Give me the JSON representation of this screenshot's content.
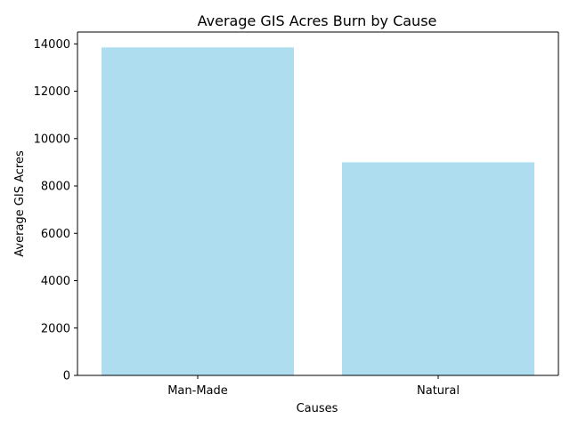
{
  "chart_data": {
    "type": "bar",
    "title": "Average GIS Acres Burn by Cause",
    "xlabel": "Causes",
    "ylabel": "Average GIS Acres",
    "categories": [
      "Man-Made",
      "Natural"
    ],
    "values": [
      13850,
      9000
    ],
    "ylim": [
      0,
      14500
    ],
    "yticks": [
      0,
      2000,
      4000,
      6000,
      8000,
      10000,
      12000,
      14000
    ],
    "ytick_labels": [
      "0",
      "2000",
      "4000",
      "6000",
      "8000",
      "10000",
      "12000",
      "14000"
    ],
    "bar_color": "#ADDDEF",
    "grid": false,
    "legend": "none"
  }
}
